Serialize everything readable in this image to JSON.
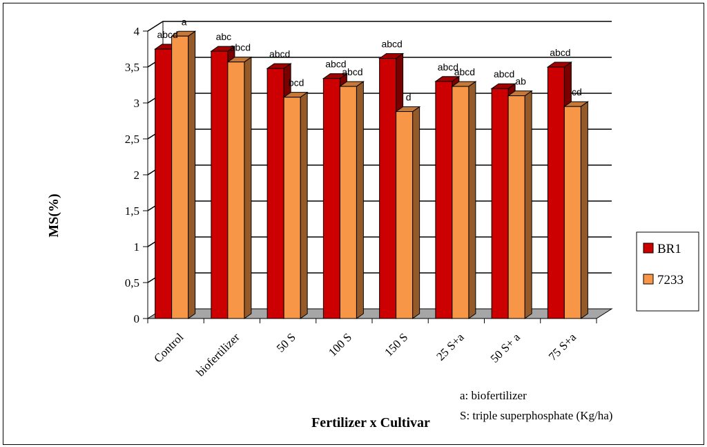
{
  "chart_data": {
    "type": "bar",
    "ylabel": "MS(%)",
    "xlabel": "Fertilizer x Cultivar",
    "categories": [
      "Control",
      "biofertilizer",
      "50 S",
      "100 S",
      "150 S",
      "25 S+a",
      "50 S+ a",
      "75 S+a"
    ],
    "series": [
      {
        "name": "BR1",
        "color": "#cc0000",
        "values": [
          3.75,
          3.72,
          3.48,
          3.34,
          3.62,
          3.3,
          3.2,
          3.5
        ],
        "significance": [
          "abcd",
          "abc",
          "abcd",
          "abcd",
          "abcd",
          "abcd",
          "abcd",
          "abcd"
        ]
      },
      {
        "name": "7233",
        "color": "#f79646",
        "values": [
          3.93,
          3.57,
          3.08,
          3.23,
          2.88,
          3.23,
          3.1,
          2.95
        ],
        "significance": [
          "a",
          "abcd",
          "bcd",
          "abcd",
          "d",
          "abcd",
          "ab",
          "cd"
        ]
      }
    ],
    "ylim": [
      0,
      4
    ],
    "yticks": [
      "0",
      "0,5",
      "1",
      "1,5",
      "2",
      "2,5",
      "3",
      "3,5",
      "4"
    ],
    "grid": true,
    "legend_position": "right",
    "notes": [
      "a: biofertilizer",
      "S: triple superphosphate (Kg/ha)"
    ]
  }
}
